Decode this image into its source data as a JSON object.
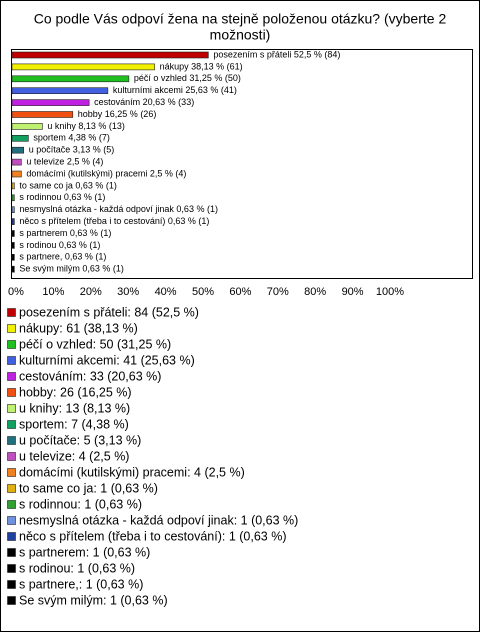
{
  "chart_data": {
    "type": "barh",
    "title_lines": [
      "Co podle Vás odpoví žena na stejně položenou otázku? (vyberte 2",
      "možnosti)"
    ],
    "values": [
      52.5,
      38.13,
      31.25,
      25.63,
      20.63,
      16.25,
      8.13,
      4.38,
      3.13,
      2.5,
      2.5,
      0.63,
      0.63,
      0.63,
      0.63,
      0.63,
      0.63,
      0.63,
      0.63
    ],
    "value_labels": [
      "posezením s přáteli 52,5 % (84)",
      "nákupy 38,13 % (61)",
      "péčí o vzhled 31,25 % (50)",
      "kulturními akcemi 25,63 % (41)",
      "cestováním 20,63 % (33)",
      "hobby 16,25 % (26)",
      "u knihy 8,13 % (13)",
      "sportem 4,38 % (7)",
      "u počítače 3,13 % (5)",
      "u televize 2,5 % (4)",
      "domácími (kutilskými) pracemi 2,5 % (4)",
      "to same co ja 0,63 % (1)",
      "s rodinnou 0,63 % (1)",
      "nesmyslná otázka - každá odpoví jinak 0,63 % (1)",
      "něco s přítelem (třeba i to cestování) 0,63 % (1)",
      "s partnerem 0,63 % (1)",
      "s rodinou 0,63 % (1)",
      "s partnere, 0,63 % (1)",
      "Se svým milým 0,63 % (1)"
    ],
    "legend_labels": [
      "posezením s přáteli: 84 (52,5 %)",
      "nákupy: 61 (38,13 %)",
      "péčí o vzhled: 50 (31,25 %)",
      "kulturními akcemi: 41 (25,63 %)",
      "cestováním: 33 (20,63 %)",
      "hobby: 26 (16,25 %)",
      "u knihy: 13 (8,13 %)",
      "sportem: 7 (4,38 %)",
      "u počítače: 5 (3,13 %)",
      "u televize: 4 (2,5 %)",
      "domácími (kutilskými) pracemi: 4 (2,5 %)",
      "to same co ja: 1 (0,63 %)",
      "s rodinnou: 1 (0,63 %)",
      "nesmyslná otázka - každá odpoví jinak: 1 (0,63 %)",
      "něco s přítelem (třeba i to cestování): 1 (0,63 %)",
      "s partnerem: 1 (0,63 %)",
      "s rodinou: 1 (0,63 %)",
      "s partnere,: 1 (0,63 %)",
      "Se svým milým: 1 (0,63 %)"
    ],
    "colors": [
      "#c00000",
      "#f0f000",
      "#20c020",
      "#4060e0",
      "#c020e0",
      "#f05010",
      "#c0f070",
      "#10a060",
      "#207080",
      "#c050c0",
      "#f08020",
      "#e0b010",
      "#30a030",
      "#7090e0",
      "#2040a0",
      "#000000",
      "#000000",
      "#000000",
      "#000000"
    ],
    "xlim": [
      0,
      123
    ],
    "xticks": [
      {
        "value": 0,
        "label": "0%"
      },
      {
        "value": 10,
        "label": "10%"
      },
      {
        "value": 20,
        "label": "20%"
      },
      {
        "value": 30,
        "label": "30%"
      },
      {
        "value": 40,
        "label": "40%"
      },
      {
        "value": 50,
        "label": "50%"
      },
      {
        "value": 60,
        "label": "60%"
      },
      {
        "value": 70,
        "label": "70%"
      },
      {
        "value": 80,
        "label": "80%"
      },
      {
        "value": 90,
        "label": "90%"
      },
      {
        "value": 100,
        "label": "100%"
      }
    ],
    "grid": false
  }
}
